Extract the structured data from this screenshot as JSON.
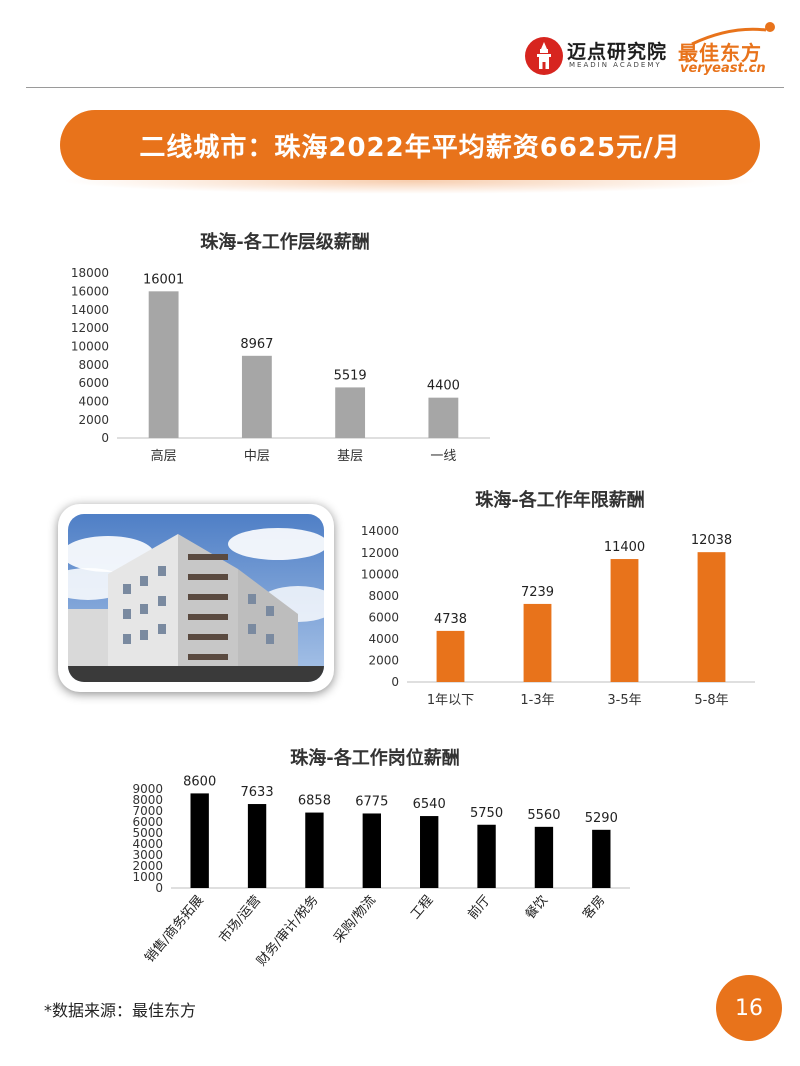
{
  "header": {
    "meadin_name": "迈点研究院",
    "meadin_sub": "MEADIN ACADEMY",
    "veryeast_name": "最佳东方",
    "veryeast_url": "veryeast.cn"
  },
  "banner": {
    "title": "二线城市：珠海2022年平均薪资6625元/月"
  },
  "colors": {
    "accent": "#e8731b",
    "gray_bar": "#a6a6a6",
    "black_bar": "#000000"
  },
  "photo": {
    "icon": "building-photo"
  },
  "chart_data": [
    {
      "type": "bar",
      "title": "珠海-各工作层级薪酬",
      "categories": [
        "高层",
        "中层",
        "基层",
        "一线"
      ],
      "values": [
        16001,
        8967,
        5519,
        4400
      ],
      "ylim": [
        0,
        18000
      ],
      "yticks": [
        0,
        2000,
        4000,
        6000,
        8000,
        10000,
        12000,
        14000,
        16000,
        18000
      ],
      "bar_color": "#a6a6a6",
      "grid": false
    },
    {
      "type": "bar",
      "title": "珠海-各工作年限薪酬",
      "categories": [
        "1年以下",
        "1-3年",
        "3-5年",
        "5-8年"
      ],
      "values": [
        4738,
        7239,
        11400,
        12038
      ],
      "ylim": [
        0,
        14000
      ],
      "yticks": [
        0,
        2000,
        4000,
        6000,
        8000,
        10000,
        12000,
        14000
      ],
      "bar_color": "#e8731b",
      "grid": false
    },
    {
      "type": "bar",
      "title": "珠海-各工作岗位薪酬",
      "categories": [
        "销售/商务拓展",
        "市场/运营",
        "财务/审计/税务",
        "采购/物流",
        "工程",
        "前厅",
        "餐饮",
        "客房"
      ],
      "values": [
        8600,
        7633,
        6858,
        6775,
        6540,
        5750,
        5560,
        5290
      ],
      "ylim": [
        0,
        9000
      ],
      "yticks": [
        0,
        1000,
        2000,
        3000,
        4000,
        5000,
        6000,
        7000,
        8000,
        9000
      ],
      "bar_color": "#000000",
      "grid": false
    }
  ],
  "footer": {
    "source": "*数据来源：最佳东方",
    "page": "16"
  }
}
